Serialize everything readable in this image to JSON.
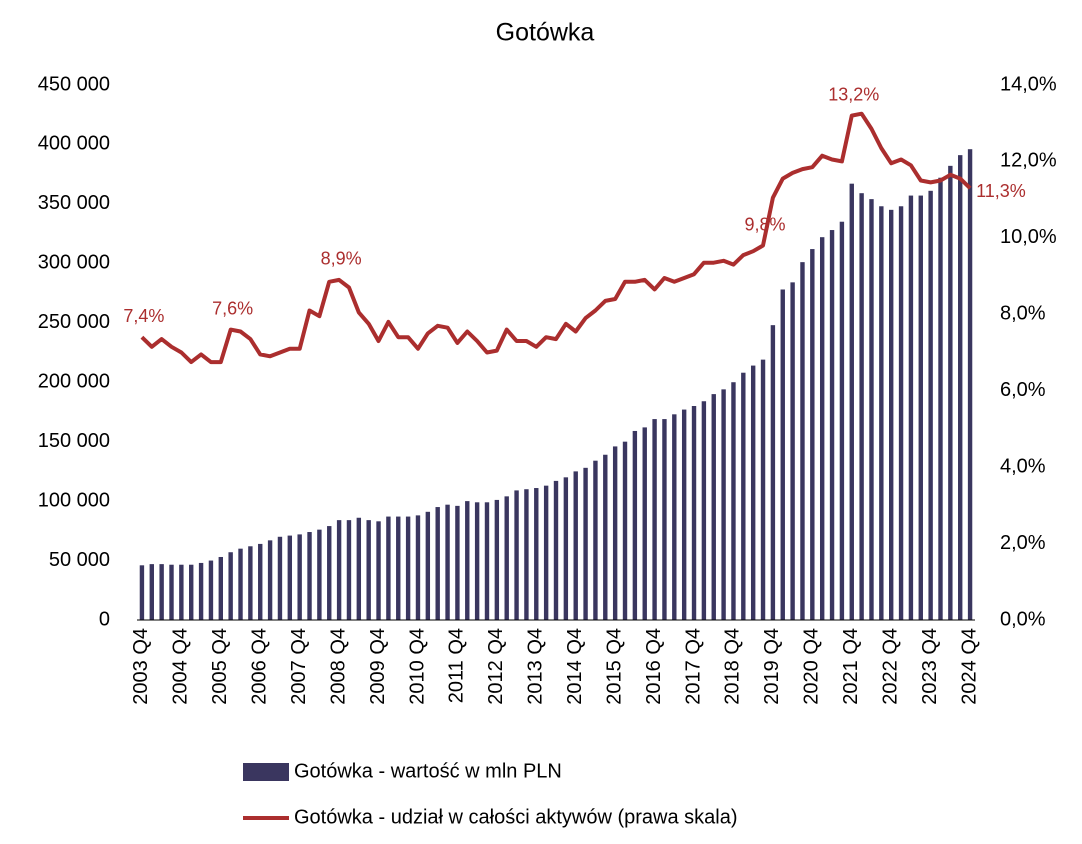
{
  "chart_data": {
    "type": "bar_line",
    "title": "Gotówka",
    "categories": [
      "2003 Q4",
      null,
      null,
      null,
      "2004 Q4",
      null,
      null,
      null,
      "2005 Q4",
      null,
      null,
      null,
      "2006 Q4",
      null,
      null,
      null,
      "2007 Q4",
      null,
      null,
      null,
      "2008 Q4",
      null,
      null,
      null,
      "2009 Q4",
      null,
      null,
      null,
      "2010 Q4",
      null,
      null,
      null,
      "2011 Q4",
      null,
      null,
      null,
      "2012 Q4",
      null,
      null,
      null,
      "2013 Q4",
      null,
      null,
      null,
      "2014 Q4",
      null,
      null,
      null,
      "2015 Q4",
      null,
      null,
      null,
      "2016 Q4",
      null,
      null,
      null,
      "2017 Q4",
      null,
      null,
      null,
      "2018 Q4",
      null,
      null,
      null,
      "2019 Q4",
      null,
      null,
      null,
      "2020 Q4",
      null,
      null,
      null,
      "2021 Q4",
      null,
      null,
      null,
      "2022 Q4",
      null,
      null,
      null,
      "2023 Q4",
      null,
      null,
      null,
      "2024 Q4"
    ],
    "series": [
      {
        "name": "Gotówka - wartość w mln PLN",
        "type": "bar",
        "color": "#3a365f",
        "values": [
          46000,
          47000,
          47000,
          46500,
          46500,
          46500,
          48000,
          50000,
          53000,
          57000,
          60000,
          62000,
          64000,
          67000,
          70000,
          71000,
          72000,
          74000,
          76000,
          79000,
          84000,
          84000,
          86000,
          84000,
          83000,
          87000,
          87000,
          87000,
          88000,
          91000,
          95000,
          97000,
          96000,
          100000,
          99000,
          99000,
          101000,
          104000,
          109000,
          110000,
          111000,
          113000,
          117000,
          120000,
          125000,
          128000,
          134000,
          139000,
          146000,
          150000,
          159000,
          162000,
          169000,
          169000,
          173000,
          177000,
          180000,
          184000,
          190000,
          194000,
          200000,
          208000,
          214000,
          219000,
          248000,
          278000,
          284000,
          301000,
          312000,
          322000,
          328000,
          335000,
          367000,
          359000,
          354000,
          348000,
          345000,
          348000,
          357000,
          357000,
          361000,
          372000,
          382000,
          391000,
          396000
        ]
      },
      {
        "name": "Gotówka - udział w całości aktywów (prawa skala)",
        "type": "line",
        "axis": "y2",
        "color": "#ab2e2e",
        "values": [
          7.4,
          7.15,
          7.35,
          7.15,
          7.0,
          6.75,
          6.95,
          6.75,
          6.75,
          7.6,
          7.55,
          7.35,
          6.95,
          6.9,
          7.0,
          7.1,
          7.1,
          8.1,
          7.95,
          8.85,
          8.9,
          8.7,
          8.05,
          7.75,
          7.3,
          7.8,
          7.4,
          7.4,
          7.1,
          7.5,
          7.7,
          7.65,
          7.25,
          7.55,
          7.3,
          7.0,
          7.05,
          7.6,
          7.3,
          7.3,
          7.15,
          7.4,
          7.35,
          7.75,
          7.55,
          7.9,
          8.1,
          8.35,
          8.4,
          8.85,
          8.85,
          8.9,
          8.65,
          8.95,
          8.85,
          8.95,
          9.05,
          9.35,
          9.35,
          9.4,
          9.3,
          9.55,
          9.65,
          9.8,
          11.05,
          11.55,
          11.7,
          11.8,
          11.85,
          12.15,
          12.05,
          12.0,
          13.2,
          13.25,
          12.85,
          12.35,
          11.95,
          12.05,
          11.9,
          11.5,
          11.45,
          11.5,
          11.65,
          11.55,
          11.3
        ],
        "value_labels": [
          "7,4%",
          null,
          null,
          null,
          null,
          null,
          null,
          null,
          null,
          "7,6%",
          null,
          null,
          null,
          null,
          null,
          null,
          null,
          null,
          null,
          null,
          "8,9%",
          null,
          null,
          null,
          null,
          null,
          null,
          null,
          null,
          null,
          null,
          null,
          null,
          null,
          null,
          null,
          null,
          null,
          null,
          null,
          null,
          null,
          null,
          null,
          null,
          null,
          null,
          null,
          null,
          null,
          null,
          null,
          null,
          null,
          null,
          null,
          null,
          null,
          null,
          null,
          null,
          null,
          null,
          "9,8%",
          null,
          null,
          null,
          null,
          null,
          null,
          null,
          null,
          "13,2%",
          null,
          null,
          null,
          null,
          null,
          null,
          null,
          null,
          null,
          null,
          null,
          "11,3%"
        ]
      }
    ],
    "ylim": [
      0,
      450000
    ],
    "yticks": [
      0,
      {
        "value": 50000,
        "label": "50 000"
      },
      {
        "value": 100000,
        "label": "100 000"
      },
      {
        "value": 150000,
        "label": "150 000"
      },
      {
        "value": 200000,
        "label": "200 000"
      },
      {
        "value": 250000,
        "label": "250 000"
      },
      {
        "value": 300000,
        "label": "300 000"
      },
      {
        "value": 350000,
        "label": "350 000"
      },
      {
        "value": 400000,
        "label": "400 000"
      },
      {
        "value": 450000,
        "label": "450 000"
      }
    ],
    "y2lim": [
      0,
      14
    ],
    "y2ticks": [
      {
        "value": 0,
        "label": "0,0%"
      },
      {
        "value": 2,
        "label": "2,0%"
      },
      {
        "value": 4,
        "label": "4,0%"
      },
      {
        "value": 6,
        "label": "6,0%"
      },
      {
        "value": 8,
        "label": "8,0%"
      },
      {
        "value": 10,
        "label": "10,0%"
      },
      {
        "value": 12,
        "label": "12,0%"
      },
      {
        "value": 14,
        "label": "14,0%"
      }
    ],
    "legend": "bottom"
  }
}
